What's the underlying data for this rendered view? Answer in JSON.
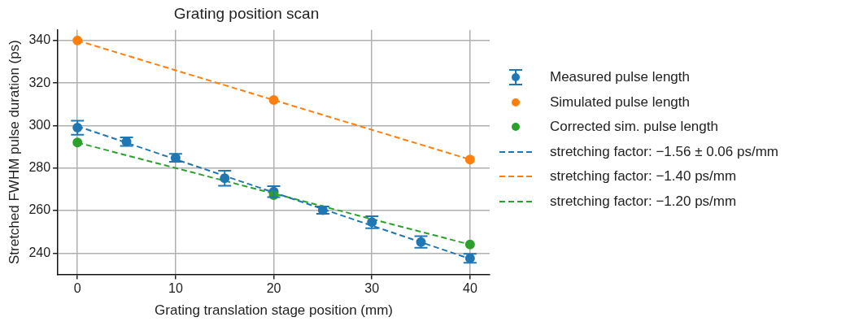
{
  "chart_data": {
    "type": "scatter",
    "title": "Grating position scan",
    "xlabel": "Grating translation stage position (mm)",
    "ylabel": "Stretched FWHM pulse duration (ps)",
    "xlim": [
      -2,
      42
    ],
    "xticks": [
      0,
      10,
      20,
      30,
      40
    ],
    "ylim": [
      230,
      345
    ],
    "yticks": [
      240,
      260,
      280,
      300,
      320,
      340
    ],
    "grid": true,
    "legend": "right",
    "series": [
      {
        "name": "Measured pulse length",
        "type": "scatter",
        "marker": "circle",
        "color": "#1f77b4",
        "x": [
          0,
          5,
          10,
          15,
          20,
          25,
          30,
          35,
          40
        ],
        "values": [
          299,
          292.4,
          284.8,
          275.2,
          268.9,
          260.2,
          254.5,
          245.2,
          237.5
        ],
        "errors": [
          3.3,
          2,
          1.9,
          3.5,
          2.6,
          1.7,
          2.8,
          2.7,
          2.1
        ]
      },
      {
        "name": "Simulated pulse length",
        "type": "scatter",
        "marker": "circle",
        "color": "#ff7f0e",
        "x": [
          0,
          20,
          40
        ],
        "values": [
          340,
          312,
          284
        ]
      },
      {
        "name": "Corrected sim. pulse length",
        "type": "scatter",
        "marker": "circle",
        "color": "#2ca02c",
        "x": [
          0,
          20,
          40
        ],
        "values": [
          292,
          267.3,
          244
        ]
      },
      {
        "name": "stretching factor: −1.56 ± 0.06 ps/mm",
        "type": "line",
        "line_style": "dashed",
        "color": "#1f77b4",
        "x": [
          0,
          40
        ],
        "values": [
          299.7,
          237.3
        ]
      },
      {
        "name": "stretching factor: −1.40 ps/mm",
        "type": "line",
        "line_style": "dashed",
        "color": "#ff7f0e",
        "x": [
          0,
          40
        ],
        "values": [
          340,
          284
        ]
      },
      {
        "name": "stretching factor: −1.20 ps/mm",
        "type": "line",
        "line_style": "dashed",
        "color": "#2ca02c",
        "x": [
          0,
          40
        ],
        "values": [
          292,
          244
        ]
      }
    ]
  }
}
